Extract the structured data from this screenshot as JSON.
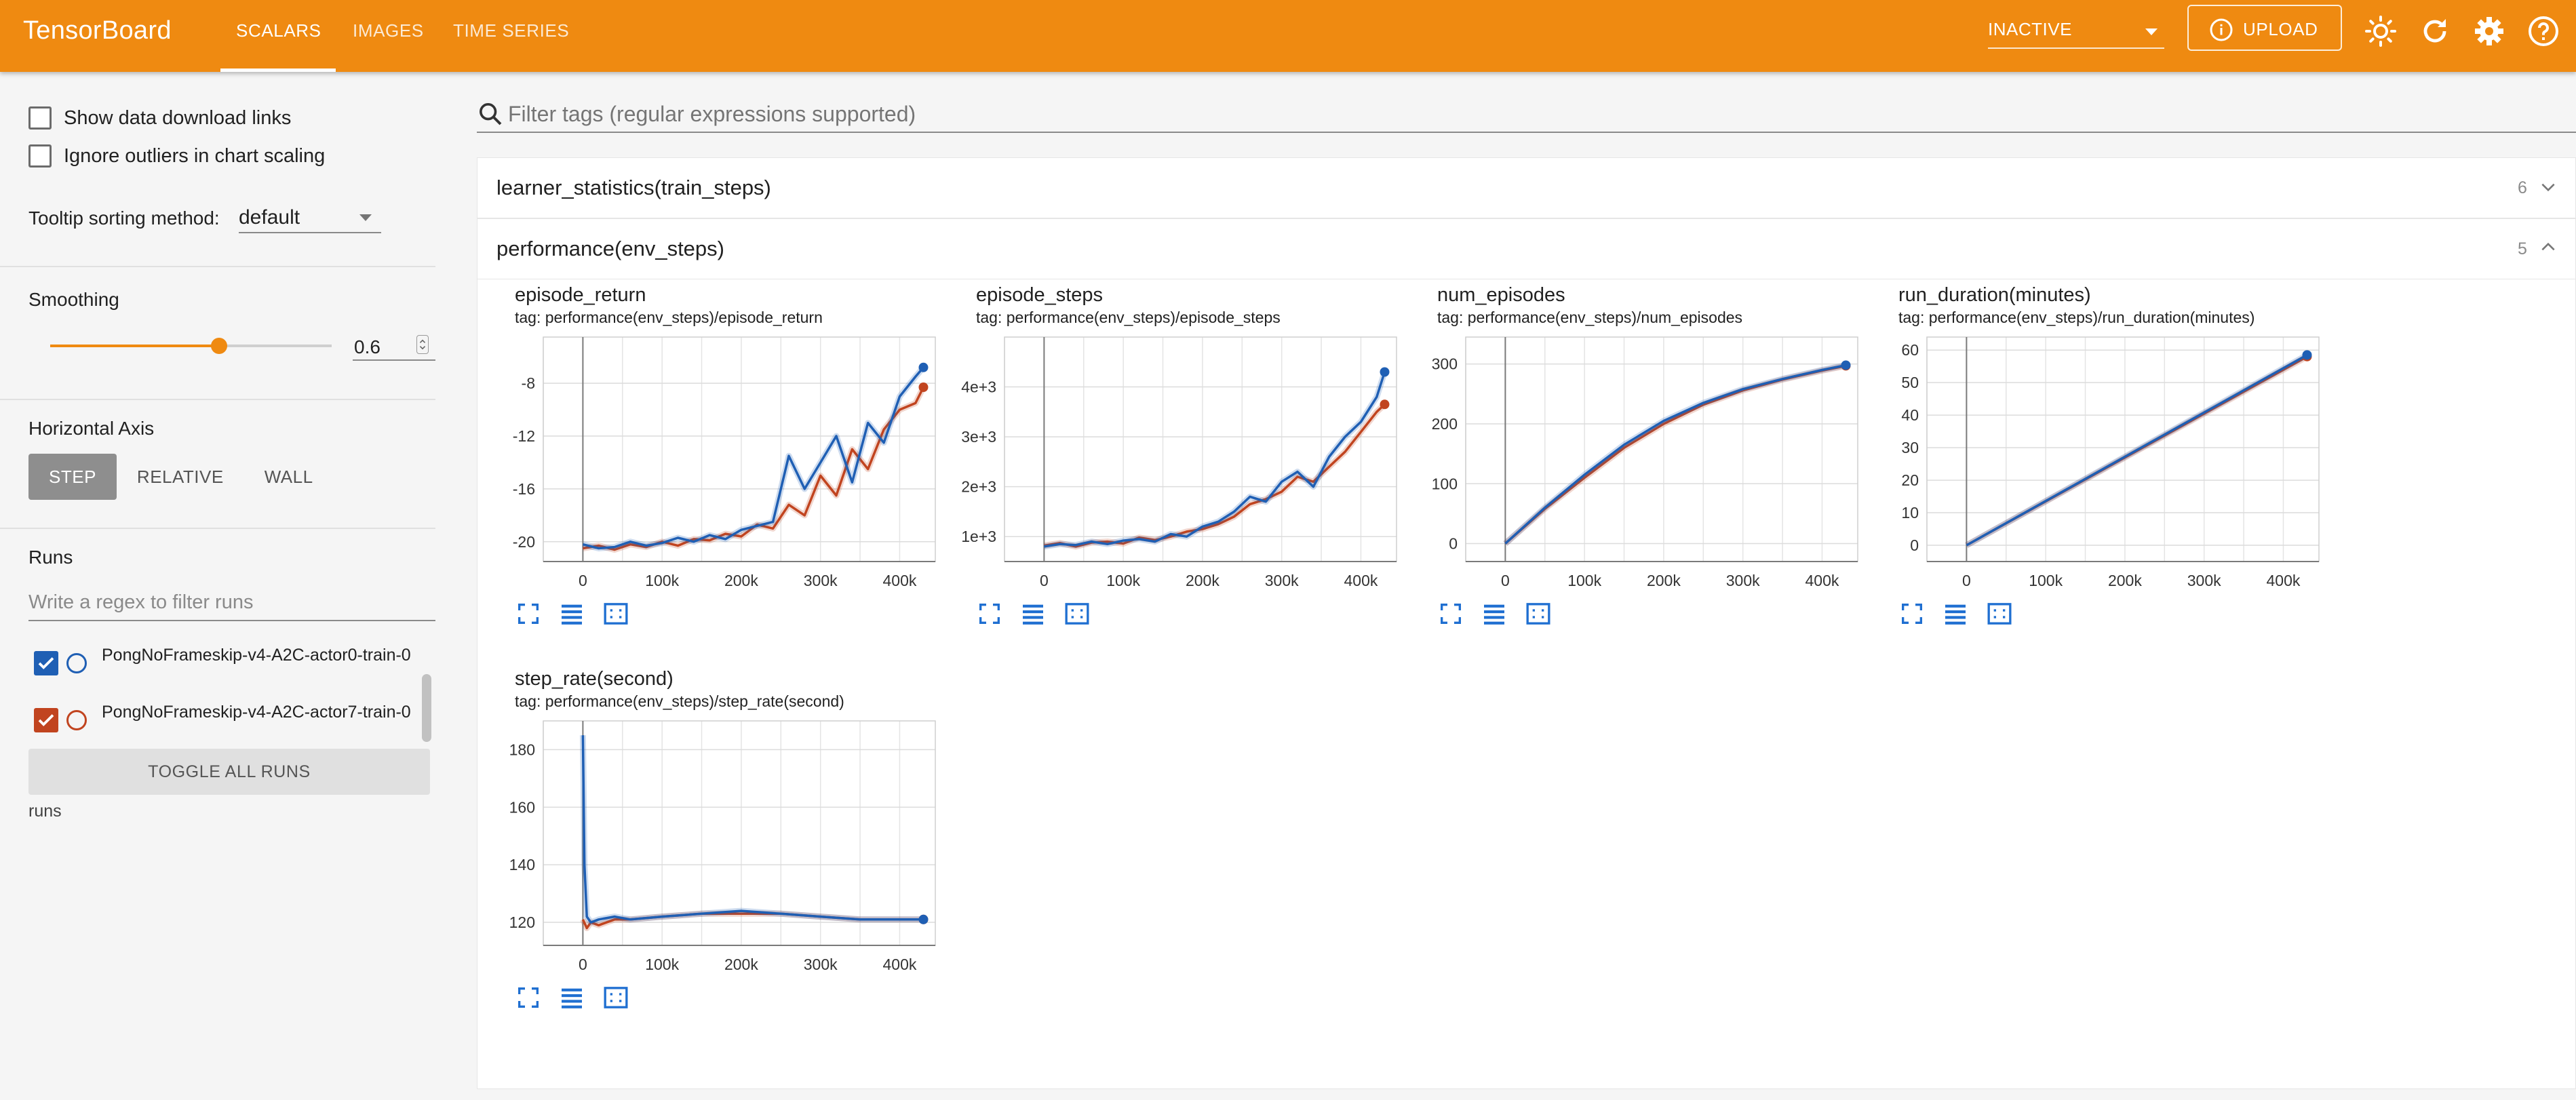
{
  "header": {
    "brand": "TensorBoard",
    "tabs": [
      {
        "label": "SCALARS",
        "active": true
      },
      {
        "label": "IMAGES",
        "active": false
      },
      {
        "label": "TIME SERIES",
        "active": false
      }
    ],
    "status_select": "INACTIVE",
    "upload_label": "UPLOAD",
    "icons": [
      "brightness-icon",
      "refresh-icon",
      "settings-icon",
      "help-icon"
    ],
    "accent_color": "#ef8a11"
  },
  "sidebar": {
    "show_download_links": {
      "label": "Show data download links",
      "checked": false
    },
    "ignore_outliers": {
      "label": "Ignore outliers in chart scaling",
      "checked": false
    },
    "tooltip_sort_label": "Tooltip sorting method:",
    "tooltip_sort_value": "default",
    "smoothing_label": "Smoothing",
    "smoothing_value": "0.6",
    "smoothing_fraction": 0.6,
    "horizontal_axis_label": "Horizontal Axis",
    "axis_options": [
      "STEP",
      "RELATIVE",
      "WALL"
    ],
    "axis_selected": "STEP",
    "runs_label": "Runs",
    "runs_filter_placeholder": "Write a regex to filter runs",
    "runs": [
      {
        "name": "PongNoFrameskip-v4-A2C-actor0-train-0",
        "color": "#1f5fb4",
        "checked": true
      },
      {
        "name": "PongNoFrameskip-v4-A2C-actor7-train-0",
        "color": "#c1441f",
        "checked": true
      }
    ],
    "toggle_all_label": "TOGGLE ALL RUNS",
    "runs_footer": "runs"
  },
  "main": {
    "filter_placeholder": "Filter tags (regular expressions supported)",
    "groups": [
      {
        "title": "learner_statistics(train_steps)",
        "count": "6",
        "expanded": false
      },
      {
        "title": "performance(env_steps)",
        "count": "5",
        "expanded": true
      }
    ]
  },
  "chart_data": [
    {
      "type": "line",
      "title": "episode_return",
      "tag": "tag: performance(env_steps)/episode_return",
      "x_ticks": [
        "0",
        "100k",
        "200k",
        "300k",
        "400k"
      ],
      "y_ticks": [
        "-8",
        "-12",
        "-16",
        "-20"
      ],
      "xlim": [
        -50000,
        445000
      ],
      "ylim": [
        -21.5,
        -4.5
      ],
      "series": [
        {
          "run": 0,
          "x": [
            0,
            20000,
            40000,
            60000,
            80000,
            100000,
            120000,
            140000,
            160000,
            180000,
            200000,
            220000,
            240000,
            260000,
            280000,
            300000,
            320000,
            340000,
            360000,
            380000,
            400000,
            420000,
            430000
          ],
          "values": [
            -20.2,
            -20.5,
            -20.4,
            -20.0,
            -20.3,
            -20.1,
            -19.7,
            -20.0,
            -19.5,
            -19.8,
            -19.1,
            -18.8,
            -18.5,
            -13.5,
            -16.0,
            -14.0,
            -12.0,
            -15.5,
            -11.0,
            -12.5,
            -9.0,
            -7.5,
            -6.8
          ]
        },
        {
          "run": 1,
          "x": [
            0,
            20000,
            40000,
            60000,
            80000,
            100000,
            120000,
            140000,
            160000,
            180000,
            200000,
            220000,
            240000,
            260000,
            280000,
            300000,
            320000,
            340000,
            360000,
            380000,
            400000,
            420000,
            430000
          ],
          "values": [
            -20.5,
            -20.3,
            -20.6,
            -20.2,
            -20.4,
            -20.0,
            -20.3,
            -19.8,
            -19.9,
            -19.4,
            -19.6,
            -18.7,
            -19.0,
            -17.2,
            -18.0,
            -15.0,
            -16.5,
            -13.0,
            -14.5,
            -11.5,
            -10.0,
            -9.5,
            -8.3
          ]
        }
      ]
    },
    {
      "type": "line",
      "title": "episode_steps",
      "tag": "tag: performance(env_steps)/episode_steps",
      "x_ticks": [
        "0",
        "100k",
        "200k",
        "300k",
        "400k"
      ],
      "y_ticks": [
        "4e+3",
        "3e+3",
        "2e+3",
        "1e+3"
      ],
      "xlim": [
        -50000,
        445000
      ],
      "ylim": [
        500,
        5000
      ],
      "series": [
        {
          "run": 0,
          "x": [
            0,
            20000,
            40000,
            60000,
            80000,
            100000,
            120000,
            140000,
            160000,
            180000,
            200000,
            220000,
            240000,
            260000,
            280000,
            300000,
            320000,
            340000,
            360000,
            380000,
            400000,
            420000,
            430000
          ],
          "values": [
            800,
            850,
            830,
            900,
            850,
            920,
            950,
            900,
            1050,
            1000,
            1200,
            1300,
            1500,
            1800,
            1700,
            2100,
            2300,
            2000,
            2600,
            3000,
            3300,
            3800,
            4300
          ]
        },
        {
          "run": 1,
          "x": [
            0,
            20000,
            40000,
            60000,
            80000,
            100000,
            120000,
            140000,
            160000,
            180000,
            200000,
            220000,
            240000,
            260000,
            280000,
            300000,
            320000,
            340000,
            360000,
            380000,
            400000,
            420000,
            430000
          ],
          "values": [
            820,
            870,
            800,
            880,
            900,
            860,
            980,
            930,
            1000,
            1100,
            1150,
            1250,
            1400,
            1650,
            1750,
            1900,
            2200,
            2100,
            2400,
            2700,
            3100,
            3500,
            3650
          ]
        }
      ]
    },
    {
      "type": "line",
      "title": "num_episodes",
      "tag": "tag: performance(env_steps)/num_episodes",
      "x_ticks": [
        "0",
        "100k",
        "200k",
        "300k",
        "400k"
      ],
      "y_ticks": [
        "300",
        "200",
        "100",
        "0"
      ],
      "xlim": [
        -50000,
        445000
      ],
      "ylim": [
        -30,
        345
      ],
      "series": [
        {
          "run": 0,
          "x": [
            0,
            50000,
            100000,
            150000,
            200000,
            250000,
            300000,
            350000,
            400000,
            430000
          ],
          "values": [
            0,
            60,
            115,
            165,
            205,
            235,
            258,
            275,
            290,
            298
          ]
        },
        {
          "run": 1,
          "x": [
            0,
            50000,
            100000,
            150000,
            200000,
            250000,
            300000,
            350000,
            400000,
            430000
          ],
          "values": [
            0,
            58,
            110,
            160,
            200,
            232,
            256,
            274,
            289,
            297
          ]
        }
      ]
    },
    {
      "type": "line",
      "title": "run_duration(minutes)",
      "tag": "tag: performance(env_steps)/run_duration(minutes)",
      "x_ticks": [
        "0",
        "100k",
        "200k",
        "300k",
        "400k"
      ],
      "y_ticks": [
        "60",
        "50",
        "40",
        "30",
        "20",
        "10",
        "0"
      ],
      "xlim": [
        -50000,
        445000
      ],
      "ylim": [
        -5,
        64
      ],
      "series": [
        {
          "run": 0,
          "x": [
            0,
            430000
          ],
          "values": [
            0,
            58.5
          ]
        },
        {
          "run": 1,
          "x": [
            0,
            430000
          ],
          "values": [
            0,
            58.0
          ]
        }
      ]
    },
    {
      "type": "line",
      "title": "step_rate(second)",
      "tag": "tag: performance(env_steps)/step_rate(second)",
      "x_ticks": [
        "0",
        "100k",
        "200k",
        "300k",
        "400k"
      ],
      "y_ticks": [
        "180",
        "160",
        "140",
        "120"
      ],
      "xlim": [
        -50000,
        445000
      ],
      "ylim": [
        112,
        190
      ],
      "series": [
        {
          "run": 0,
          "x": [
            0,
            2000,
            5000,
            10000,
            20000,
            40000,
            60000,
            100000,
            150000,
            200000,
            250000,
            300000,
            350000,
            400000,
            430000
          ],
          "values": [
            185,
            140,
            122,
            120,
            121,
            122,
            121,
            122,
            123,
            124,
            123,
            122,
            121,
            121,
            121
          ]
        },
        {
          "run": 1,
          "x": [
            0,
            5000,
            10000,
            20000,
            40000,
            60000,
            100000,
            150000,
            200000,
            250000,
            300000,
            350000,
            400000,
            430000
          ],
          "values": [
            121,
            118,
            120,
            119,
            121,
            121,
            122,
            123,
            123,
            123,
            122,
            121,
            121,
            121
          ]
        }
      ]
    }
  ]
}
